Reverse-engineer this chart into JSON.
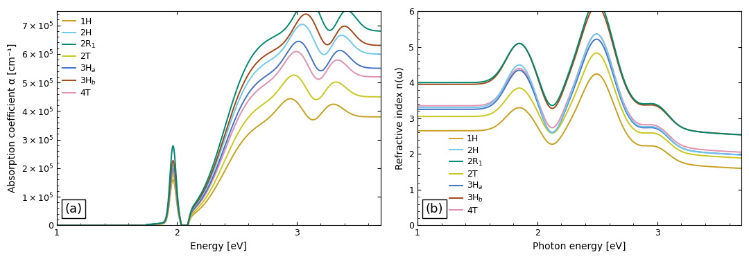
{
  "colors": {
    "1H": "#C8A020",
    "2H": "#70C8EC",
    "2R1": "#008870",
    "2T": "#C8C820",
    "3Ha": "#4472C4",
    "3Hb": "#A04818",
    "4T": "#E090B0"
  },
  "panel_a": {
    "xlabel": "Energy [eV]",
    "ylabel": "Absorption coefficient α [cm⁻¹]",
    "xlim": [
      1,
      3.7
    ],
    "ylim": [
      0,
      750000.0
    ],
    "yticks": [
      0,
      100000.0,
      200000.0,
      300000.0,
      400000.0,
      500000.0,
      600000.0,
      700000.0
    ],
    "xticks": [
      1,
      2,
      3
    ]
  },
  "panel_b": {
    "xlabel": "Photon energy [eV]",
    "ylabel": "Refractive index n(ω)",
    "xlim": [
      1,
      3.7
    ],
    "ylim": [
      0,
      6
    ],
    "yticks": [
      0,
      1,
      2,
      3,
      4,
      5,
      6
    ],
    "xticks": [
      1,
      2,
      3
    ]
  },
  "background_color": "#FFFFFF",
  "panel_label_fontsize": 13,
  "axis_label_fontsize": 10,
  "tick_fontsize": 9,
  "legend_fontsize": 9,
  "line_width": 1.4
}
